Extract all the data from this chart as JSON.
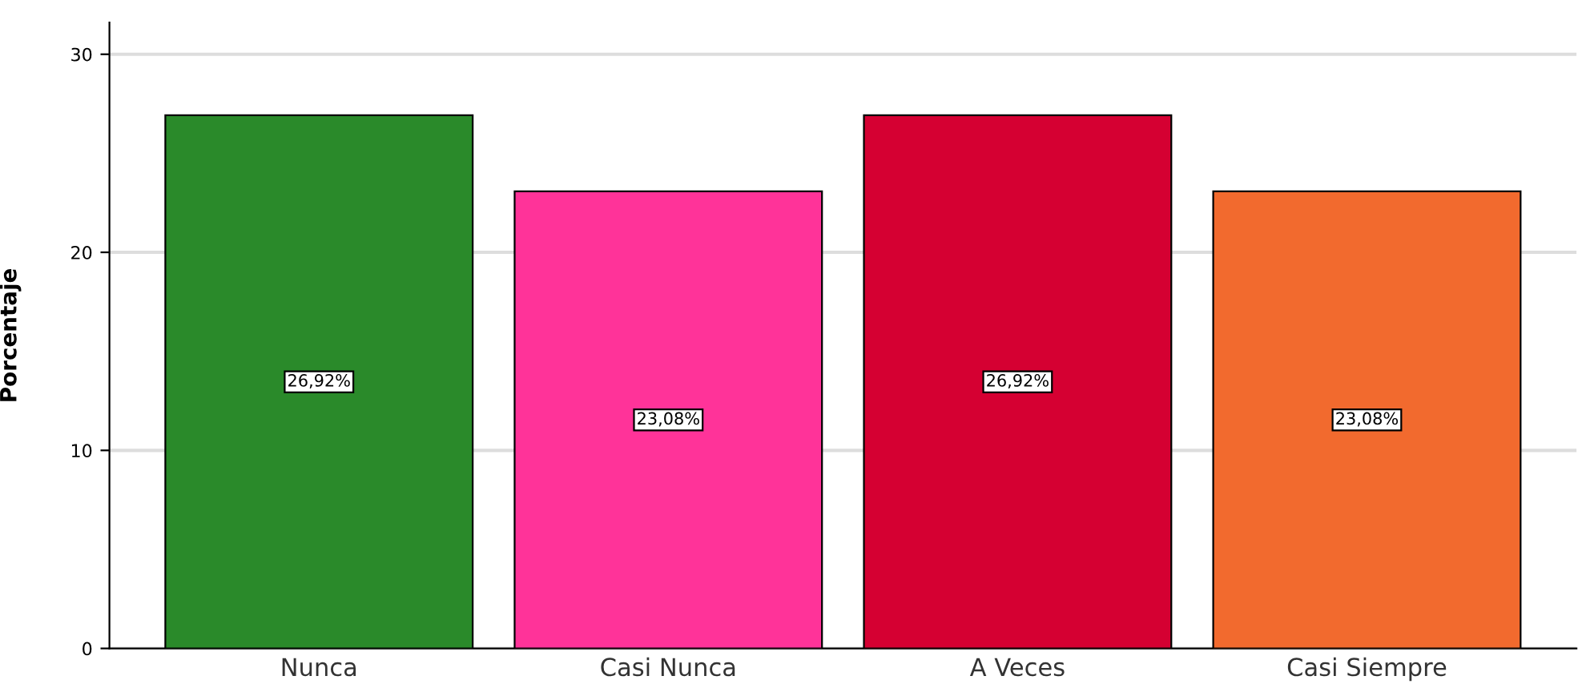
{
  "chart_data": {
    "type": "bar",
    "ylabel": "Porcentaje",
    "categories": [
      "Nunca",
      "Casi Nunca",
      "A Veces",
      "Casi Siempre"
    ],
    "values": [
      26.92,
      23.08,
      26.92,
      23.08
    ],
    "colors": [
      "#2a8a2a",
      "#ff3399",
      "#d50032",
      "#f26a2e"
    ],
    "value_labels": [
      "26,92%",
      "23,08%",
      "26,92%",
      "23,08%"
    ],
    "ylim": [
      0,
      31.6
    ],
    "yticks": [
      0,
      10,
      20,
      30
    ],
    "grid": "y"
  }
}
